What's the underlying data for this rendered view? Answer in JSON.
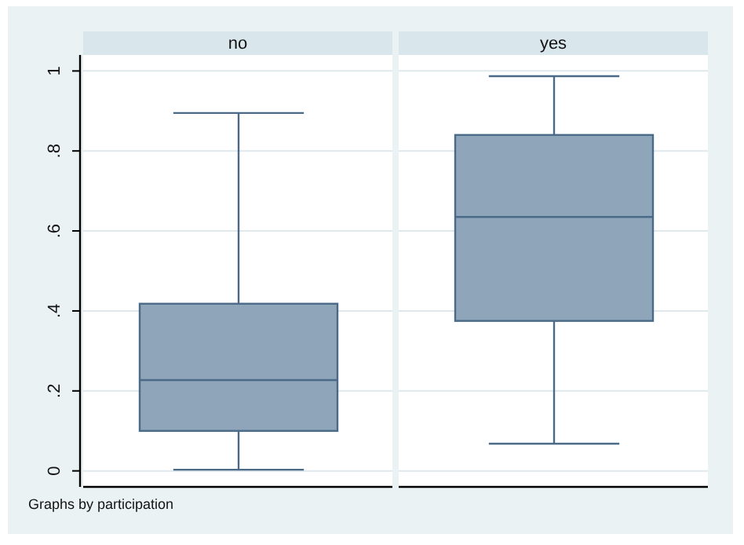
{
  "chart_data": {
    "type": "box",
    "categories": [
      "no",
      "yes"
    ],
    "color": "#8ea5ba",
    "boxes": [
      {
        "low": 0.003,
        "q1": 0.1,
        "median": 0.227,
        "q3": 0.418,
        "high": 0.895
      },
      {
        "low": 0.068,
        "q1": 0.375,
        "median": 0.635,
        "q3": 0.84,
        "high": 0.987
      }
    ],
    "ylim": [
      -0.04,
      1.04
    ],
    "yticks": [
      0,
      {
        "value": 0.2,
        "label": ".2"
      },
      {
        "value": 0.4,
        "label": ".4"
      },
      {
        "value": 0.6,
        "label": ".6"
      },
      {
        "value": 0.8,
        "label": ".8"
      },
      1
    ],
    "grid": "y",
    "annotations": [
      "Graphs by participation"
    ]
  }
}
